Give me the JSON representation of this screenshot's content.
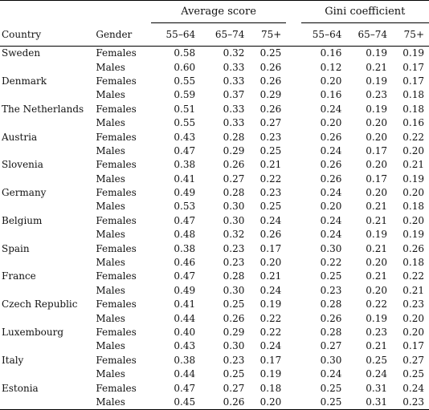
{
  "table": {
    "group_headers": {
      "average_score": "Average score",
      "gini_coefficient": "Gini coefficient"
    },
    "column_headers": {
      "country": "Country",
      "gender": "Gender",
      "age_groups": [
        "55–64",
        "65–74",
        "75+"
      ]
    },
    "rows": [
      {
        "country": "Sweden",
        "gender": "Females",
        "avg": [
          "0.58",
          "0.32",
          "0.25"
        ],
        "gini": [
          "0.16",
          "0.19",
          "0.19"
        ]
      },
      {
        "country": "",
        "gender": "Males",
        "avg": [
          "0.60",
          "0.33",
          "0.26"
        ],
        "gini": [
          "0.12",
          "0.21",
          "0.17"
        ]
      },
      {
        "country": "Denmark",
        "gender": "Females",
        "avg": [
          "0.55",
          "0.33",
          "0.26"
        ],
        "gini": [
          "0.20",
          "0.19",
          "0.17"
        ]
      },
      {
        "country": "",
        "gender": "Males",
        "avg": [
          "0.59",
          "0.37",
          "0.29"
        ],
        "gini": [
          "0.16",
          "0.23",
          "0.18"
        ]
      },
      {
        "country": "The Netherlands",
        "gender": "Females",
        "avg": [
          "0.51",
          "0.33",
          "0.26"
        ],
        "gini": [
          "0.24",
          "0.19",
          "0.18"
        ]
      },
      {
        "country": "",
        "gender": "Males",
        "avg": [
          "0.55",
          "0.33",
          "0.27"
        ],
        "gini": [
          "0.20",
          "0.20",
          "0.16"
        ]
      },
      {
        "country": "Austria",
        "gender": "Females",
        "avg": [
          "0.43",
          "0.28",
          "0.23"
        ],
        "gini": [
          "0.26",
          "0.20",
          "0.22"
        ]
      },
      {
        "country": "",
        "gender": "Males",
        "avg": [
          "0.47",
          "0.29",
          "0.25"
        ],
        "gini": [
          "0.24",
          "0.17",
          "0.20"
        ]
      },
      {
        "country": "Slovenia",
        "gender": "Females",
        "avg": [
          "0.38",
          "0.26",
          "0.21"
        ],
        "gini": [
          "0.26",
          "0.20",
          "0.21"
        ]
      },
      {
        "country": "",
        "gender": "Males",
        "avg": [
          "0.41",
          "0.27",
          "0.22"
        ],
        "gini": [
          "0.26",
          "0.17",
          "0.19"
        ]
      },
      {
        "country": "Germany",
        "gender": "Females",
        "avg": [
          "0.49",
          "0.28",
          "0.23"
        ],
        "gini": [
          "0.24",
          "0.20",
          "0.20"
        ]
      },
      {
        "country": "",
        "gender": "Males",
        "avg": [
          "0.53",
          "0.30",
          "0.25"
        ],
        "gini": [
          "0.20",
          "0.21",
          "0.18"
        ]
      },
      {
        "country": "Belgium",
        "gender": "Females",
        "avg": [
          "0.47",
          "0.30",
          "0.24"
        ],
        "gini": [
          "0.24",
          "0.21",
          "0.20"
        ]
      },
      {
        "country": "",
        "gender": "Males",
        "avg": [
          "0.48",
          "0.32",
          "0.26"
        ],
        "gini": [
          "0.24",
          "0.19",
          "0.19"
        ]
      },
      {
        "country": "Spain",
        "gender": "Females",
        "avg": [
          "0.38",
          "0.23",
          "0.17"
        ],
        "gini": [
          "0.30",
          "0.21",
          "0.26"
        ]
      },
      {
        "country": "",
        "gender": "Males",
        "avg": [
          "0.46",
          "0.23",
          "0.20"
        ],
        "gini": [
          "0.22",
          "0.20",
          "0.18"
        ]
      },
      {
        "country": "France",
        "gender": "Females",
        "avg": [
          "0.47",
          "0.28",
          "0.21"
        ],
        "gini": [
          "0.25",
          "0.21",
          "0.22"
        ]
      },
      {
        "country": "",
        "gender": "Males",
        "avg": [
          "0.49",
          "0.30",
          "0.24"
        ],
        "gini": [
          "0.23",
          "0.20",
          "0.21"
        ]
      },
      {
        "country": "Czech Republic",
        "gender": "Females",
        "avg": [
          "0.41",
          "0.25",
          "0.19"
        ],
        "gini": [
          "0.28",
          "0.22",
          "0.23"
        ]
      },
      {
        "country": "",
        "gender": "Males",
        "avg": [
          "0.44",
          "0.26",
          "0.22"
        ],
        "gini": [
          "0.26",
          "0.19",
          "0.20"
        ]
      },
      {
        "country": "Luxembourg",
        "gender": "Females",
        "avg": [
          "0.40",
          "0.29",
          "0.22"
        ],
        "gini": [
          "0.28",
          "0.23",
          "0.20"
        ]
      },
      {
        "country": "",
        "gender": "Males",
        "avg": [
          "0.43",
          "0.30",
          "0.24"
        ],
        "gini": [
          "0.27",
          "0.21",
          "0.17"
        ]
      },
      {
        "country": "Italy",
        "gender": "Females",
        "avg": [
          "0.38",
          "0.23",
          "0.17"
        ],
        "gini": [
          "0.30",
          "0.25",
          "0.27"
        ]
      },
      {
        "country": "",
        "gender": "Males",
        "avg": [
          "0.44",
          "0.25",
          "0.19"
        ],
        "gini": [
          "0.24",
          "0.24",
          "0.25"
        ]
      },
      {
        "country": "Estonia",
        "gender": "Females",
        "avg": [
          "0.47",
          "0.27",
          "0.18"
        ],
        "gini": [
          "0.25",
          "0.31",
          "0.24"
        ]
      },
      {
        "country": "",
        "gender": "Males",
        "avg": [
          "0.45",
          "0.26",
          "0.20"
        ],
        "gini": [
          "0.25",
          "0.31",
          "0.23"
        ]
      }
    ]
  }
}
